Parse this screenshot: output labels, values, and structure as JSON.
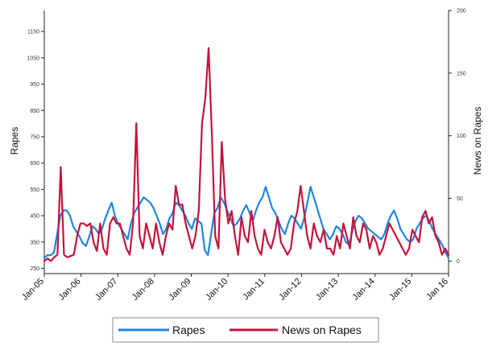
{
  "chart_data": {
    "type": "line",
    "title": "",
    "ylabel": "Rapes",
    "y2label": "News on Rapes",
    "ylim": [
      230,
      1230
    ],
    "y2lim": [
      -10,
      200
    ],
    "yticks": [
      250,
      350,
      450,
      550,
      650,
      750,
      850,
      950,
      1050,
      1150
    ],
    "y2ticks": [
      0,
      50,
      100,
      150,
      200
    ],
    "xlim": [
      0,
      132
    ],
    "xticks": [
      {
        "label": "Jan-05",
        "x": 0
      },
      {
        "label": "Jan-06",
        "x": 12
      },
      {
        "label": "Jan-07",
        "x": 24
      },
      {
        "label": "Jan-08",
        "x": 36
      },
      {
        "label": "Jan-09",
        "x": 48
      },
      {
        "label": "Jan-10",
        "x": 60
      },
      {
        "label": "Jan-11",
        "x": 72
      },
      {
        "label": "Jan-12",
        "x": 84
      },
      {
        "label": "Jan-13",
        "x": 96
      },
      {
        "label": "Jan-14",
        "x": 108
      },
      {
        "label": "Jan-15",
        "x": 120
      },
      {
        "label": "Jan 16",
        "x": 132
      }
    ],
    "grid": false,
    "legend_position": "bottom",
    "series": [
      {
        "name": "Rapes",
        "axis": "left",
        "color": "#1f86e0",
        "values": [
          290,
          300,
          300,
          310,
          380,
          450,
          470,
          470,
          450,
          410,
          390,
          370,
          345,
          335,
          370,
          410,
          400,
          380,
          400,
          440,
          470,
          500,
          450,
          420,
          400,
          380,
          360,
          420,
          460,
          480,
          500,
          520,
          510,
          500,
          480,
          450,
          420,
          380,
          400,
          440,
          460,
          500,
          490,
          470,
          450,
          420,
          400,
          440,
          430,
          420,
          320,
          300,
          380,
          460,
          480,
          520,
          500,
          470,
          440,
          410,
          420,
          440,
          470,
          490,
          460,
          430,
          470,
          500,
          520,
          560,
          520,
          480,
          460,
          430,
          400,
          380,
          420,
          450,
          440,
          420,
          400,
          440,
          500,
          560,
          520,
          480,
          440,
          400,
          380,
          360,
          380,
          410,
          400,
          380,
          350,
          340,
          390,
          430,
          450,
          440,
          420,
          400,
          390,
          380,
          370,
          360,
          380,
          420,
          450,
          470,
          440,
          400,
          380,
          360,
          350,
          360,
          400,
          420,
          440,
          450,
          430,
          400,
          380,
          360,
          340,
          310,
          290
        ]
      },
      {
        "name": "News on Rapes",
        "axis": "right",
        "color": "#c2143c",
        "values": [
          0,
          2,
          0,
          3,
          5,
          75,
          5,
          3,
          4,
          5,
          20,
          30,
          30,
          28,
          30,
          15,
          8,
          30,
          10,
          5,
          30,
          35,
          30,
          30,
          20,
          10,
          5,
          30,
          110,
          20,
          10,
          30,
          20,
          10,
          30,
          15,
          5,
          20,
          30,
          25,
          60,
          45,
          45,
          30,
          20,
          10,
          20,
          40,
          110,
          130,
          170,
          100,
          20,
          10,
          95,
          50,
          30,
          40,
          20,
          5,
          35,
          20,
          15,
          40,
          20,
          10,
          5,
          25,
          15,
          10,
          20,
          35,
          15,
          10,
          5,
          10,
          30,
          40,
          60,
          40,
          20,
          10,
          30,
          20,
          15,
          25,
          10,
          10,
          5,
          20,
          10,
          30,
          20,
          10,
          35,
          20,
          15,
          30,
          25,
          10,
          20,
          15,
          5,
          10,
          20,
          30,
          25,
          20,
          15,
          10,
          5,
          10,
          25,
          20,
          15,
          35,
          40,
          30,
          35,
          20,
          15,
          5,
          10,
          5
        ]
      }
    ]
  }
}
